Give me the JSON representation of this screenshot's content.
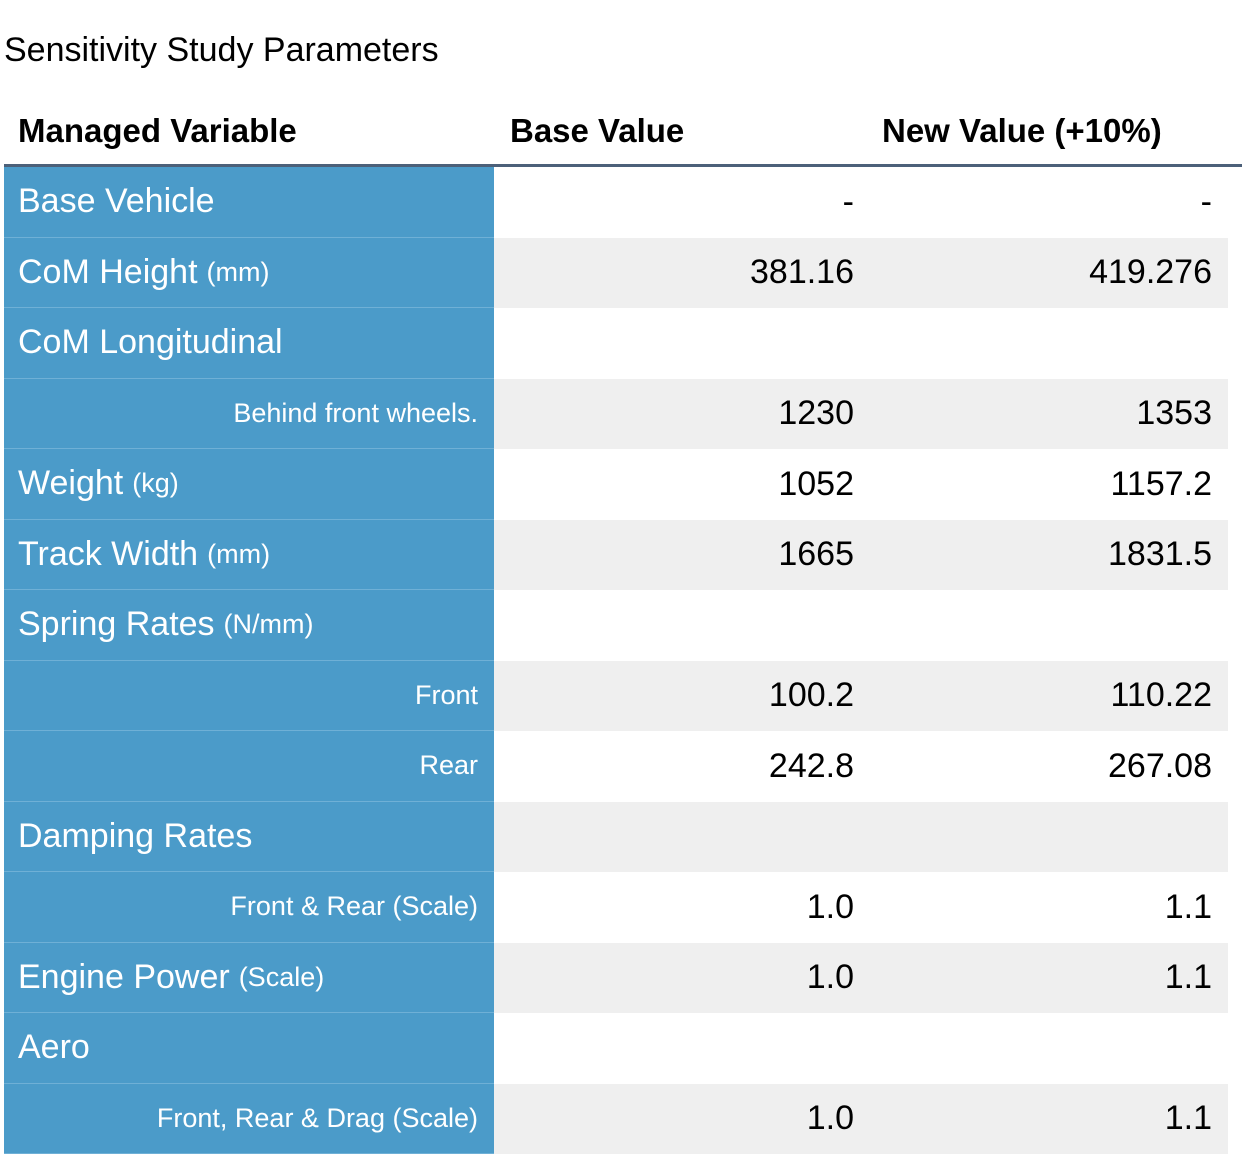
{
  "title": "Sensitivity Study Parameters",
  "headers": {
    "variable": "Managed Variable",
    "base": "Base Value",
    "new": "New Value (+10%)"
  },
  "rows": [
    {
      "label": "Base Vehicle",
      "unit": "",
      "kind": "main",
      "base": "-",
      "new": "-"
    },
    {
      "label": "CoM Height",
      "unit": "(mm)",
      "kind": "main",
      "base": "381.16",
      "new": "419.276"
    },
    {
      "label": "CoM Longitudinal",
      "unit": "",
      "kind": "main",
      "base": "",
      "new": ""
    },
    {
      "label": "Behind front wheels.",
      "unit": "",
      "kind": "sub",
      "base": "1230",
      "new": "1353"
    },
    {
      "label": "Weight",
      "unit": "(kg)",
      "kind": "main",
      "base": "1052",
      "new": "1157.2"
    },
    {
      "label": "Track Width",
      "unit": "(mm)",
      "kind": "main",
      "base": "1665",
      "new": "1831.5"
    },
    {
      "label": "Spring Rates",
      "unit": "(N/mm)",
      "kind": "main",
      "base": "",
      "new": ""
    },
    {
      "label": "Front",
      "unit": "",
      "kind": "sub",
      "base": "100.2",
      "new": "110.22"
    },
    {
      "label": "Rear",
      "unit": "",
      "kind": "sub",
      "base": "242.8",
      "new": "267.08"
    },
    {
      "label": "Damping Rates",
      "unit": "",
      "kind": "main",
      "base": "",
      "new": ""
    },
    {
      "label": "Front & Rear (Scale)",
      "unit": "",
      "kind": "sub",
      "base": "1.0",
      "new": "1.1"
    },
    {
      "label": "Engine Power",
      "unit": "(Scale)",
      "kind": "main",
      "base": "1.0",
      "new": "1.1"
    },
    {
      "label": "Aero",
      "unit": "",
      "kind": "main",
      "base": "",
      "new": ""
    },
    {
      "label": "Front, Rear & Drag (Scale)",
      "unit": "",
      "kind": "sub",
      "base": "1.0",
      "new": "1.1"
    }
  ],
  "colors": {
    "label_bg": "#4b9bc9",
    "header_rule": "#4c6079",
    "stripe": "#efefef"
  }
}
